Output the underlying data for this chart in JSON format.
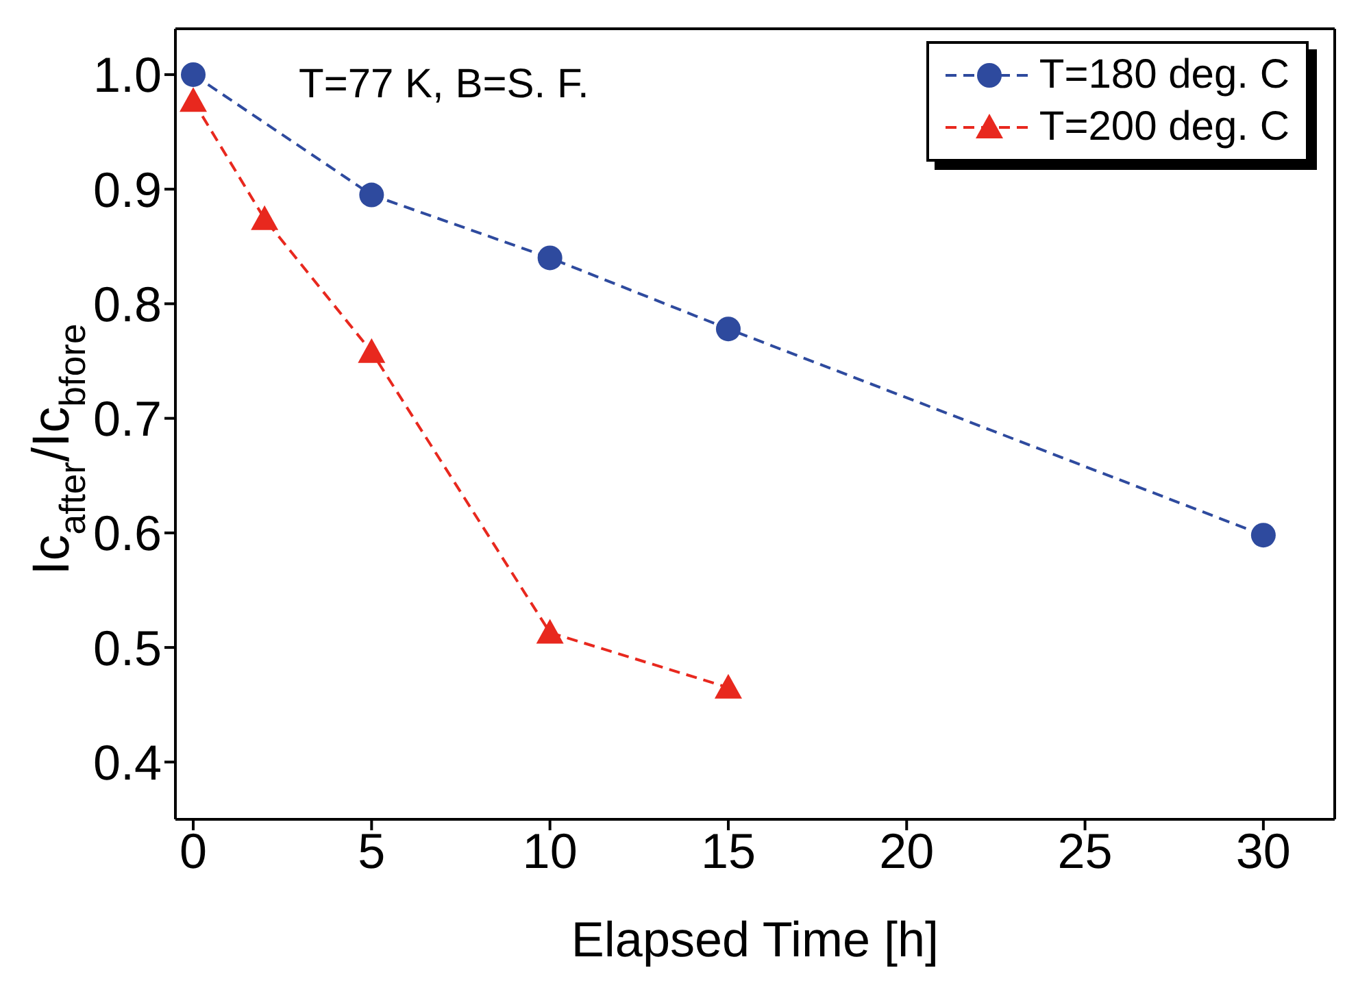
{
  "chart_data": {
    "type": "line",
    "xlabel": "Elapsed Time [h]",
    "ylabel": "Ic$_{after}$/Ic$_{bfore}$",
    "annotations": [
      "T=77 K, B=S. F."
    ],
    "xlim": [
      -0.5,
      32
    ],
    "xticks": [
      0,
      5,
      10,
      15,
      20,
      25,
      30
    ],
    "ylim": [
      0.35,
      1.04
    ],
    "yticks": [
      0.4,
      0.5,
      0.6,
      0.7,
      0.8,
      0.9,
      {
        "value": 1.0,
        "label": "1.0"
      }
    ],
    "legend": "top right",
    "line_style": "dashed",
    "series": [
      {
        "name": "T=180 deg. C",
        "color": "#2e4a9e",
        "marker": "circle",
        "x": [
          0,
          5,
          10,
          15,
          30
        ],
        "values": [
          1.0,
          0.895,
          0.84,
          0.778,
          0.598
        ]
      },
      {
        "name": "T=200 deg. C",
        "color": "#e8281e",
        "marker": "triangle",
        "x": [
          0,
          2,
          5,
          10,
          15
        ],
        "values": [
          0.977,
          0.874,
          0.758,
          0.513,
          0.465
        ]
      }
    ]
  }
}
